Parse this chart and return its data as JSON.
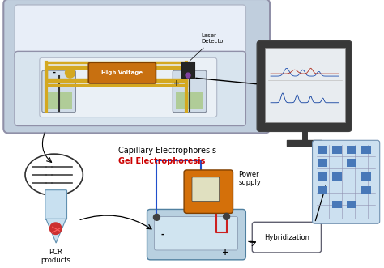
{
  "background_color": "#ffffff",
  "fig_width": 4.74,
  "fig_height": 3.31,
  "dpi": 100,
  "capillary_label": "Capillary Electrophoresis",
  "gel_label": "Gel Electrophoresis",
  "gel_label_color": "#cc0000",
  "high_voltage_label": "High Voltage",
  "high_voltage_bg": "#c87010",
  "laser_label": "Laser\nDetector",
  "power_supply_label": "Power\nsupply",
  "pcr_label": "PCR\nproducts",
  "hybridization_label": "Hybridization",
  "plus_sign": "+",
  "minus_sign": "-",
  "machine_body_color": "#c0cedd",
  "machine_inner_color": "#d8e4ee",
  "machine_white_color": "#eaf0f6",
  "liquid_color": "#b0cc98",
  "capillary_color": "#d4a820",
  "gel_box_color": "#b8d0e0",
  "power_box_color": "#d4700a",
  "computer_dark": "#383838",
  "screen_color": "#e8ecf0",
  "hybridization_box_color": "#ddeaf5",
  "result_panel_color": "#cce0f0",
  "separator_line_color": "#aaaaaa",
  "beaker_color": "#d0dce8",
  "tube_color": "#c8e0f0"
}
